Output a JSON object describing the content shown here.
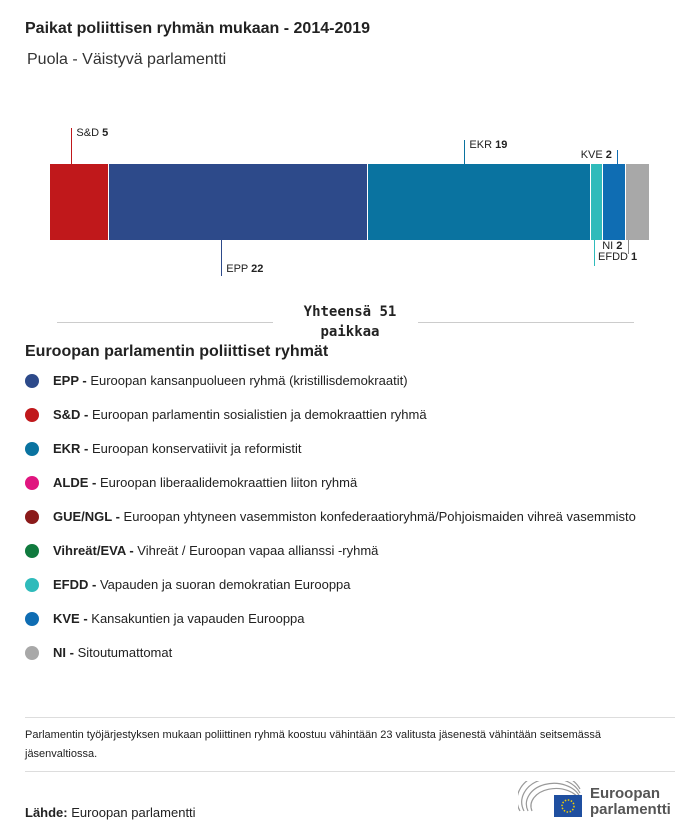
{
  "header": {
    "title": "Paikat poliittisen ryhmän mukaan - 2014-2019",
    "subtitle": "Puola - Väistyvä parlamentti"
  },
  "chart_data": {
    "type": "bar",
    "orientation": "stacked-horizontal",
    "categories": [
      "S&D",
      "EPP",
      "EKR",
      "EFDD",
      "KVE",
      "NI"
    ],
    "values": [
      5,
      22,
      19,
      1,
      2,
      2
    ],
    "colors": [
      "#c0181b",
      "#2d4a8a",
      "#0a73a0",
      "#2fbbbb",
      "#0f6db3",
      "#a8a8a8"
    ],
    "label_side": [
      "top",
      "bottom",
      "top",
      "bottom",
      "top",
      "bottom"
    ],
    "total_label": "Yhteensä 51 paikkaa"
  },
  "legend": {
    "title": "Euroopan parlamentin poliittiset ryhmät",
    "items": [
      {
        "abbr": "EPP -",
        "name": "Euroopan kansanpuolueen ryhmä (kristillisdemokraatit)",
        "color": "#2d4a8a"
      },
      {
        "abbr": "S&D -",
        "name": "Euroopan parlamentin sosialistien ja demokraattien ryhmä",
        "color": "#c0181b"
      },
      {
        "abbr": "EKR -",
        "name": "Euroopan konservatiivit ja reformistit",
        "color": "#0a73a0"
      },
      {
        "abbr": "ALDE -",
        "name": "Euroopan liberaalidemokraattien liiton ryhmä",
        "color": "#e0157f"
      },
      {
        "abbr": "GUE/NGL -",
        "name": "Euroopan yhtyneen vasemmiston konfederaatioryhmä/Pohjoismaiden vihreä vasemmisto",
        "color": "#8b1a1a"
      },
      {
        "abbr": "Vihreät/EVA -",
        "name": "Vihreät / Euroopan vapaa allianssi -ryhmä",
        "color": "#107a3e"
      },
      {
        "abbr": "EFDD -",
        "name": "Vapauden ja suoran demokratian Eurooppa",
        "color": "#2fbbbb"
      },
      {
        "abbr": "KVE -",
        "name": "Kansakuntien ja vapauden Eurooppa",
        "color": "#0f6db3"
      },
      {
        "abbr": "NI -",
        "name": "Sitoutumattomat",
        "color": "#a8a8a8"
      }
    ]
  },
  "note": "Parlamentin työjärjestyksen mukaan poliittinen ryhmä koostuu vähintään 23 valitusta jäsenestä vähintään seitsemässä jäsenvaltiossa.",
  "source": {
    "label": "Lähde:",
    "value": "Euroopan parlamentti"
  },
  "logo": {
    "line1": "Euroopan",
    "line2": "parlamentti"
  }
}
